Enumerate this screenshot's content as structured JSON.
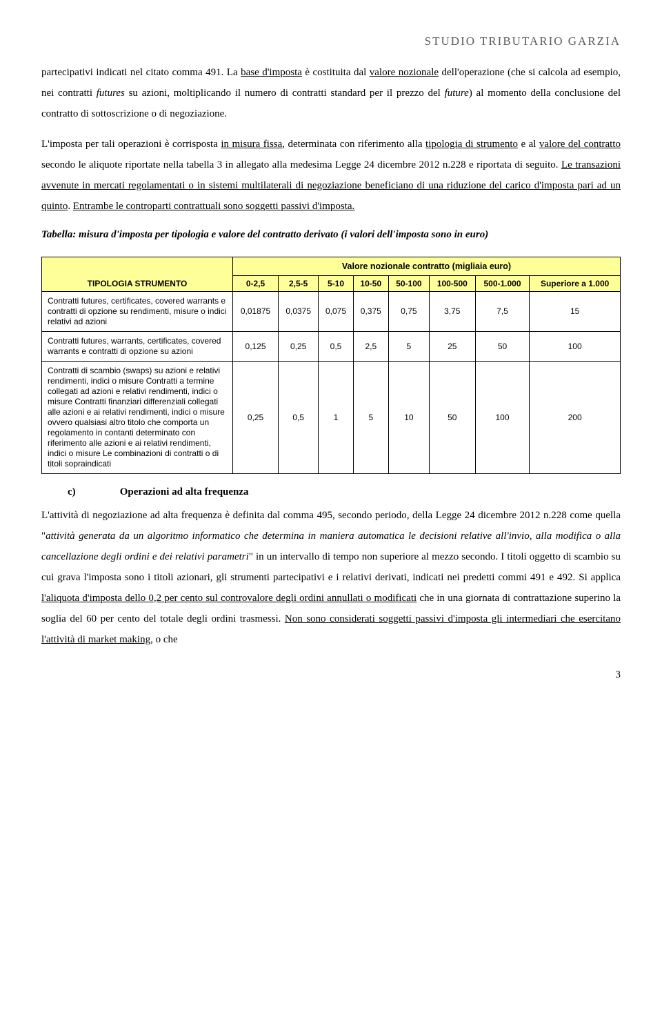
{
  "brand": "STUDIO  TRIBUTARIO  GARZIA",
  "para1_pre": "partecipativi indicati nel citato comma 491. La ",
  "para1_u1": "base d'imposta",
  "para1_mid1": " è costituita dal ",
  "para1_u2": "valore nozionale",
  "para1_mid2": " dell'operazione (che si calcola ad esempio, nei contratti ",
  "para1_it1": "futures",
  "para1_mid3": " su azioni, moltiplicando il numero di contratti standard per il prezzo del ",
  "para1_it2": "future",
  "para1_mid4": ") al momento della conclusione del contratto di sottoscrizione o di negoziazione.",
  "para2_pre": "L'imposta per tali operazioni è corrisposta ",
  "para2_u1": "in misura fissa",
  "para2_mid1": ", determinata con riferimento alla ",
  "para2_u2": "tipologia di strumento",
  "para2_mid2": " e al ",
  "para2_u3": "valore del contratto",
  "para2_mid3": " secondo le aliquote riportate nella tabella 3 in allegato alla medesima Legge 24 dicembre 2012 n.228 e riportata di seguito. ",
  "para2_u4": "Le transazioni avvenute in mercati regolamentati o in sistemi multilaterali di negoziazione beneficiano di una riduzione del carico d'imposta pari ad un quinto",
  "para2_mid4": ". ",
  "para2_u5": "Entrambe le controparti contrattuali sono soggetti passivi d'imposta.",
  "table_caption": "Tabella: misura d'imposta per tipologia e valore del contratto derivato (i valori dell'imposta sono in euro)",
  "table": {
    "header_left": "TIPOLOGIA STRUMENTO",
    "super_header": "Valore nozionale contratto (migliaia euro)",
    "columns": [
      "0-2,5",
      "2,5-5",
      "5-10",
      "10-50",
      "50-100",
      "100-500",
      "500-1.000",
      "Superiore a 1.000"
    ],
    "rows": [
      {
        "label": "Contratti futures, certificates, covered warrants e contratti di opzione su rendimenti, misure o indici relativi ad azioni",
        "values": [
          "0,01875",
          "0,0375",
          "0,075",
          "0,375",
          "0,75",
          "3,75",
          "7,5",
          "15"
        ]
      },
      {
        "label": "Contratti futures, warrants, certificates, covered warrants  e contratti di opzione su azioni",
        "values": [
          "0,125",
          "0,25",
          "0,5",
          "2,5",
          "5",
          "25",
          "50",
          "100"
        ]
      },
      {
        "label": "Contratti di scambio (swaps) su azioni e relativi rendimenti, indici o misure Contratti a termine collegati ad azioni e relativi rendimenti, indici o misure Contratti finanziari differenziali collegati alle azioni e ai relativi rendimenti, indici o misure ovvero qualsiasi altro titolo che comporta un regolamento in contanti  determinato con riferimento alle azioni e ai relativi rendimenti,  indici o misure Le combinazioni di contratti o di titoli sopraindicati",
        "values": [
          "0,25",
          "0,5",
          "1",
          "5",
          "10",
          "50",
          "100",
          "200"
        ]
      }
    ]
  },
  "section_c_letter": "c)",
  "section_c_title": "Operazioni ad alta frequenza",
  "para3_pre": "L'attività di negoziazione ad alta frequenza è definita dal comma 495, secondo periodo, della Legge 24 dicembre 2012 n.228 come quella \"",
  "para3_it": "attività generata da un algoritmo informatico che determina in maniera automatica le decisioni relative all'invio, alla modifica o alla cancellazione degli ordini e dei relativi parametri",
  "para3_mid1": "\" in un intervallo di tempo non superiore al mezzo secondo. I titoli oggetto di scambio su cui grava l'imposta sono i titoli azionari, gli strumenti partecipativi e i relativi derivati, indicati nei predetti commi 491 e 492. Si applica ",
  "para3_u1": "l'aliquota d'imposta dello 0,2 per cento sul controvalore degli ordini annullati o modificati",
  "para3_mid2": " che in una giornata di contrattazione superino la soglia del 60 per cento del totale degli ordini trasmessi. ",
  "para3_u2": "Non sono considerati soggetti passivi d'imposta gli intermediari che esercitano l'attività di market making",
  "para3_end": ", o che",
  "page_number": "3"
}
